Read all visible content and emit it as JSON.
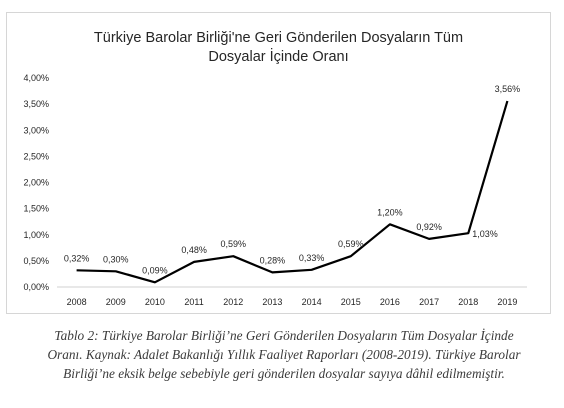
{
  "chart_data": {
    "type": "line",
    "title_lines": [
      "Türkiye Barolar Birliği'ne Geri Gönderilen Dosyaların Tüm",
      "Dosyalar İçinde Oranı"
    ],
    "xlabel": "",
    "ylabel": "",
    "categories": [
      "2008",
      "2009",
      "2010",
      "2011",
      "2012",
      "2013",
      "2014",
      "2015",
      "2016",
      "2017",
      "2018",
      "2019"
    ],
    "values": [
      0.32,
      0.3,
      0.09,
      0.48,
      0.59,
      0.28,
      0.33,
      0.59,
      1.2,
      0.92,
      1.03,
      3.56
    ],
    "data_labels": [
      "0,32%",
      "0,30%",
      "0,09%",
      "0,48%",
      "0,59%",
      "0,28%",
      "0,33%",
      "0,59%",
      "1,20%",
      "0,92%",
      "1,03%",
      "3,56%"
    ],
    "ylim": [
      0,
      4.0
    ],
    "yticks": [
      0,
      0.5,
      1.0,
      1.5,
      2.0,
      2.5,
      3.0,
      3.5,
      4.0
    ],
    "ytick_labels": [
      "0,00%",
      "0,50%",
      "1,00%",
      "1,50%",
      "2,00%",
      "2,50%",
      "3,00%",
      "3,50%",
      "4,00%"
    ],
    "grid": false,
    "legend": "none",
    "line_color": "#000000"
  },
  "caption": {
    "lines": [
      "Tablo 2: Türkiye Barolar Birliği’ne Geri Gönderilen Dosyaların Tüm Dosyalar İçinde",
      "Oranı. Kaynak: Adalet Bakanlığı Yıllık Faaliyet Raporları (2008-2019). Türkiye Barolar",
      "Birliği’ne eksik belge sebebiyle geri gönderilen dosyalar sayıya dâhil edilmemiştir."
    ]
  }
}
